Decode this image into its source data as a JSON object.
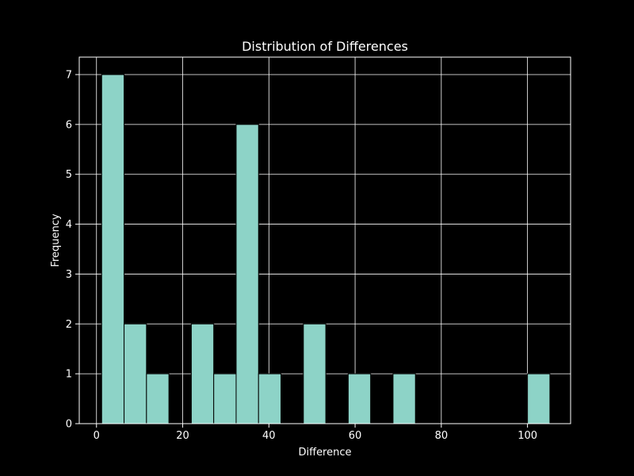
{
  "chart_data": {
    "type": "bar",
    "title": "Distribution of Differences",
    "xlabel": "Difference",
    "ylabel": "Frequency",
    "xlim": [
      -4,
      110
    ],
    "ylim": [
      0,
      7.35
    ],
    "xticks": [
      0,
      20,
      40,
      60,
      80,
      100
    ],
    "yticks": [
      0,
      1,
      2,
      3,
      4,
      5,
      6,
      7
    ],
    "grid": true,
    "colors": {
      "background": "#000000",
      "bar_fill": "#8dd3c7",
      "bar_edge": "#000000",
      "grid": "#ffffff",
      "text": "#ffffff"
    },
    "bins": [
      {
        "start": 1.2,
        "end": 6.4,
        "count": 7
      },
      {
        "start": 6.4,
        "end": 11.6,
        "count": 2
      },
      {
        "start": 11.6,
        "end": 16.8,
        "count": 1
      },
      {
        "start": 22.0,
        "end": 27.2,
        "count": 2
      },
      {
        "start": 27.2,
        "end": 32.4,
        "count": 1
      },
      {
        "start": 32.4,
        "end": 37.6,
        "count": 6
      },
      {
        "start": 37.6,
        "end": 42.8,
        "count": 1
      },
      {
        "start": 48.0,
        "end": 53.2,
        "count": 2
      },
      {
        "start": 58.4,
        "end": 63.6,
        "count": 1
      },
      {
        "start": 68.8,
        "end": 74.0,
        "count": 1
      },
      {
        "start": 100.0,
        "end": 105.2,
        "count": 1
      }
    ]
  }
}
